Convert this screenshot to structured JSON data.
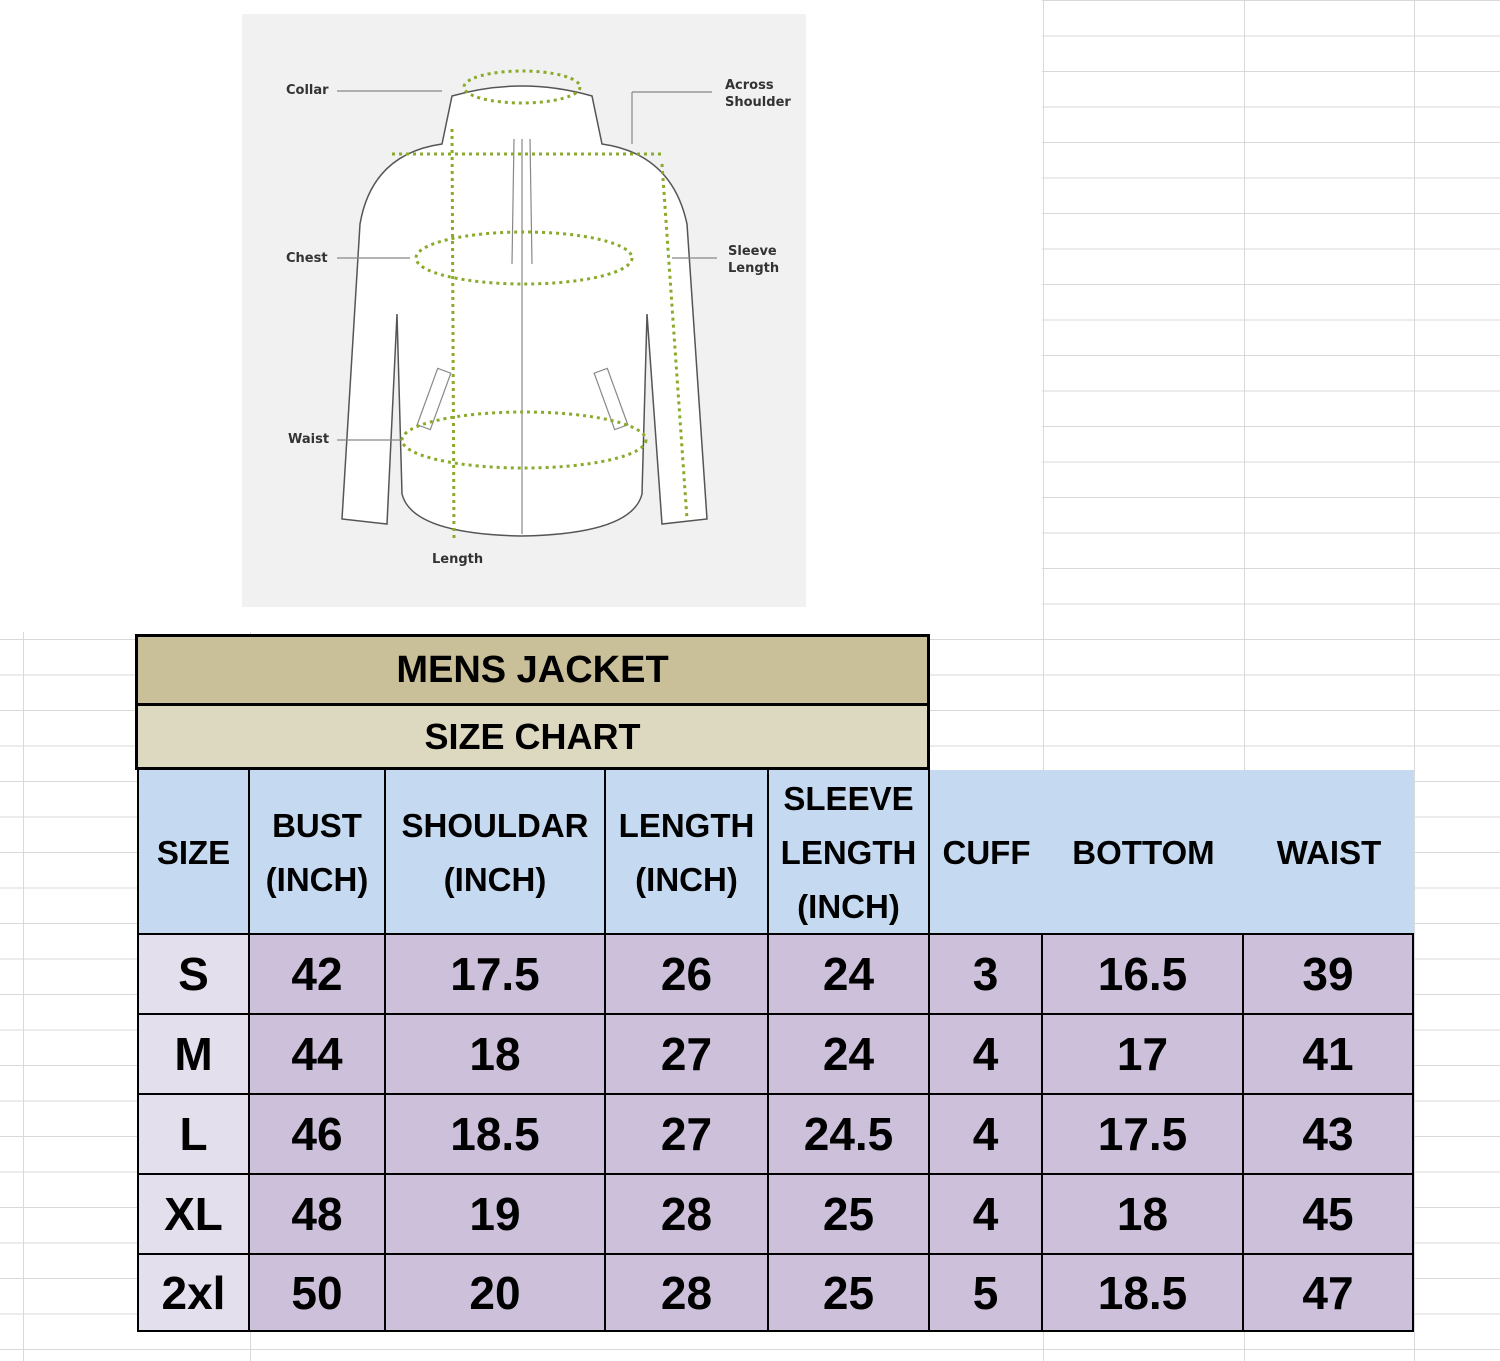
{
  "diagram": {
    "labels": {
      "collar": "Collar",
      "across_shoulder_1": "Across",
      "across_shoulder_2": "Shoulder",
      "chest": "Chest",
      "sleeve_1": "Sleeve",
      "sleeve_2": "Length",
      "waist": "Waist",
      "length": "Length"
    },
    "accent_color": "#8aaa2a"
  },
  "table": {
    "title": "MENS JACKET",
    "subtitle": "SIZE CHART",
    "headers": [
      [
        "SIZE"
      ],
      [
        "BUST",
        "(INCH)"
      ],
      [
        "SHOULDAR",
        "(INCH)"
      ],
      [
        "LENGTH",
        "(INCH)"
      ],
      [
        "SLEEVE",
        "LENGTH",
        "(INCH)"
      ],
      [
        "CUFF"
      ],
      [
        "BOTTOM"
      ],
      [
        "WAIST"
      ]
    ],
    "rows": [
      [
        "S",
        "42",
        "17.5",
        "26",
        "24",
        "3",
        "16.5",
        "39"
      ],
      [
        "M",
        "44",
        "18",
        "27",
        "24",
        "4",
        "17",
        "41"
      ],
      [
        "L",
        "46",
        "18.5",
        "27",
        "24.5",
        "4",
        "17.5",
        "43"
      ],
      [
        "XL",
        "48",
        "19",
        "28",
        "25",
        "4",
        "18",
        "45"
      ],
      [
        "2xl",
        "50",
        "20",
        "28",
        "25",
        "5",
        "18.5",
        "47"
      ]
    ],
    "colors": {
      "title_bg": "#c9bf98",
      "subtitle_bg": "#ddd8c0",
      "header_bg": "#c5d9f1",
      "data_bg": "#ccc0da",
      "size_bg": "#e4dfec"
    }
  }
}
